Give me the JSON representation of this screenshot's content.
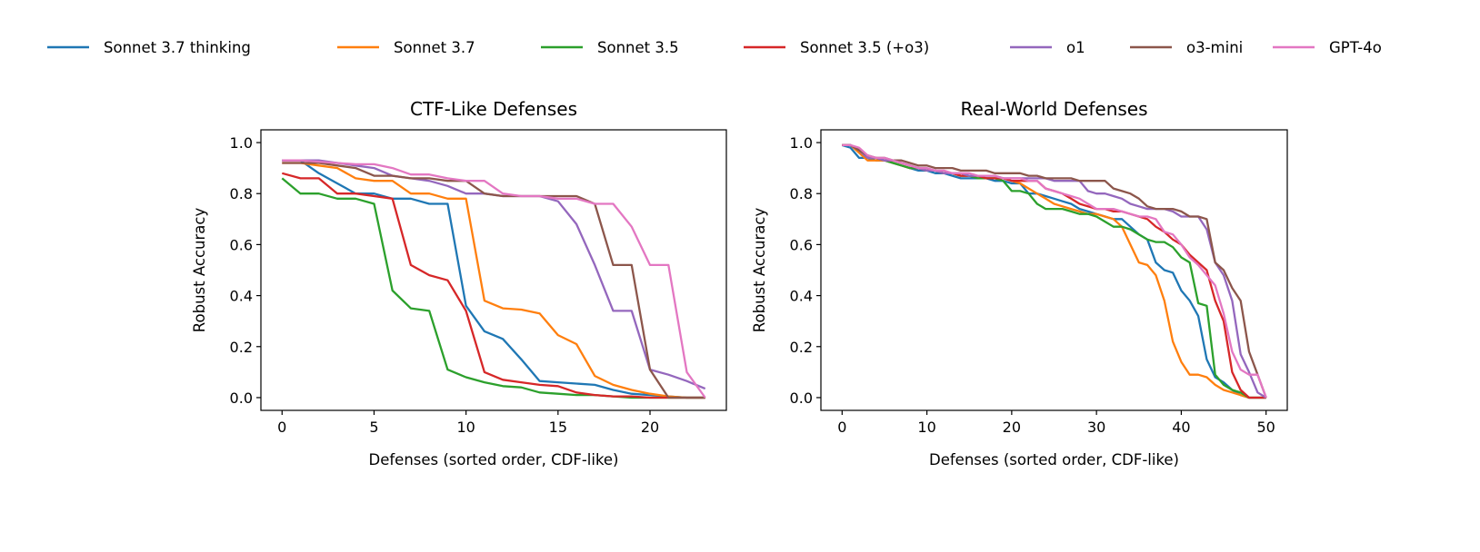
{
  "legend": [
    {
      "name": "Sonnet 3.7 thinking",
      "color": "#1f77b4"
    },
    {
      "name": "Sonnet 3.7",
      "color": "#ff7f0e"
    },
    {
      "name": "Sonnet 3.5",
      "color": "#2ca02c"
    },
    {
      "name": "Sonnet 3.5 (+o3)",
      "color": "#d62728"
    },
    {
      "name": "o1",
      "color": "#9467bd"
    },
    {
      "name": "o3-mini",
      "color": "#8c564b"
    },
    {
      "name": "GPT-4o",
      "color": "#e377c2"
    }
  ],
  "chart_data": [
    {
      "type": "line",
      "title": "CTF-Like Defenses",
      "xlabel": "Defenses (sorted order, CDF-like)",
      "ylabel": "Robust Accuracy",
      "xlim": [
        -1.15,
        24.15
      ],
      "ylim": [
        1.05,
        -0.05
      ],
      "xticks": [
        0,
        5,
        10,
        15,
        20
      ],
      "xtick_labels": [
        "0",
        "5",
        "10",
        "15",
        "20"
      ],
      "yticks": [
        0.0,
        0.2,
        0.4,
        0.6,
        0.8,
        1.0
      ],
      "ytick_labels": [
        "0.0",
        "0.2",
        "0.4",
        "0.6",
        "0.8",
        "1.0"
      ],
      "grid": false,
      "series": [
        {
          "name": "Sonnet 3.7 thinking",
          "values": [
            0.93,
            0.93,
            0.88,
            0.84,
            0.8,
            0.8,
            0.78,
            0.78,
            0.76,
            0.76,
            0.36,
            0.26,
            0.23,
            0.15,
            0.065,
            0.06,
            0.055,
            0.05,
            0.03,
            0.015,
            0.01,
            0.005,
            0,
            0
          ]
        },
        {
          "name": "Sonnet 3.7",
          "values": [
            0.92,
            0.92,
            0.91,
            0.9,
            0.86,
            0.85,
            0.85,
            0.8,
            0.8,
            0.78,
            0.78,
            0.38,
            0.35,
            0.345,
            0.33,
            0.245,
            0.21,
            0.085,
            0.05,
            0.03,
            0.015,
            0.005,
            0,
            0
          ]
        },
        {
          "name": "Sonnet 3.5",
          "values": [
            0.86,
            0.8,
            0.8,
            0.78,
            0.78,
            0.76,
            0.42,
            0.35,
            0.34,
            0.11,
            0.08,
            0.06,
            0.045,
            0.04,
            0.02,
            0.015,
            0.01,
            0.01,
            0.005,
            0,
            0,
            0,
            0,
            0
          ]
        },
        {
          "name": "Sonnet 3.5 (+o3)",
          "values": [
            0.88,
            0.86,
            0.86,
            0.8,
            0.8,
            0.79,
            0.78,
            0.52,
            0.48,
            0.46,
            0.34,
            0.1,
            0.07,
            0.06,
            0.05,
            0.045,
            0.02,
            0.01,
            0.005,
            0.005,
            0,
            0,
            0,
            0
          ]
        },
        {
          "name": "o1",
          "values": [
            0.93,
            0.93,
            0.93,
            0.92,
            0.91,
            0.9,
            0.87,
            0.86,
            0.85,
            0.83,
            0.8,
            0.8,
            0.79,
            0.79,
            0.79,
            0.77,
            0.68,
            0.52,
            0.34,
            0.34,
            0.11,
            0.09,
            0.065,
            0.035
          ]
        },
        {
          "name": "o3-mini",
          "values": [
            0.92,
            0.92,
            0.92,
            0.91,
            0.9,
            0.87,
            0.87,
            0.86,
            0.86,
            0.85,
            0.85,
            0.8,
            0.79,
            0.79,
            0.79,
            0.79,
            0.79,
            0.76,
            0.52,
            0.52,
            0.11,
            0,
            0,
            0
          ]
        },
        {
          "name": "GPT-4o",
          "values": [
            0.93,
            0.93,
            0.925,
            0.92,
            0.915,
            0.915,
            0.9,
            0.875,
            0.875,
            0.86,
            0.85,
            0.85,
            0.8,
            0.79,
            0.79,
            0.78,
            0.78,
            0.76,
            0.76,
            0.67,
            0.52,
            0.52,
            0.1,
            0
          ]
        }
      ]
    },
    {
      "type": "line",
      "title": "Real-World Defenses",
      "xlabel": "Defenses (sorted order, CDF-like)",
      "ylabel": "Robust Accuracy",
      "xlim": [
        -2.5,
        52.5
      ],
      "ylim": [
        1.05,
        -0.05
      ],
      "xticks": [
        0,
        10,
        20,
        30,
        40,
        50
      ],
      "xtick_labels": [
        "0",
        "10",
        "20",
        "30",
        "40",
        "50"
      ],
      "yticks": [
        0.0,
        0.2,
        0.4,
        0.6,
        0.8,
        1.0
      ],
      "ytick_labels": [
        "0.0",
        "0.2",
        "0.4",
        "0.6",
        "0.8",
        "1.0"
      ],
      "grid": false,
      "series": [
        {
          "name": "Sonnet 3.7 thinking",
          "values": [
            0.99,
            0.98,
            0.94,
            0.94,
            0.93,
            0.93,
            0.92,
            0.91,
            0.9,
            0.89,
            0.89,
            0.88,
            0.88,
            0.87,
            0.86,
            0.86,
            0.86,
            0.86,
            0.85,
            0.85,
            0.84,
            0.84,
            0.8,
            0.8,
            0.79,
            0.78,
            0.77,
            0.76,
            0.74,
            0.73,
            0.72,
            0.71,
            0.7,
            0.7,
            0.67,
            0.64,
            0.62,
            0.53,
            0.5,
            0.49,
            0.42,
            0.38,
            0.32,
            0.15,
            0.08,
            0.06,
            0.03,
            0.01,
            0,
            0,
            0
          ]
        },
        {
          "name": "Sonnet 3.7",
          "values": [
            0.99,
            0.99,
            0.96,
            0.93,
            0.93,
            0.93,
            0.92,
            0.91,
            0.9,
            0.9,
            0.89,
            0.89,
            0.88,
            0.88,
            0.87,
            0.87,
            0.87,
            0.86,
            0.86,
            0.86,
            0.85,
            0.84,
            0.82,
            0.8,
            0.78,
            0.76,
            0.75,
            0.74,
            0.73,
            0.72,
            0.72,
            0.71,
            0.7,
            0.67,
            0.6,
            0.53,
            0.52,
            0.48,
            0.38,
            0.22,
            0.14,
            0.09,
            0.09,
            0.08,
            0.05,
            0.03,
            0.02,
            0.01,
            0,
            0,
            0
          ]
        },
        {
          "name": "Sonnet 3.5",
          "values": [
            0.99,
            0.99,
            0.97,
            0.94,
            0.94,
            0.93,
            0.92,
            0.91,
            0.9,
            0.9,
            0.89,
            0.89,
            0.88,
            0.88,
            0.87,
            0.87,
            0.86,
            0.86,
            0.86,
            0.85,
            0.81,
            0.81,
            0.8,
            0.76,
            0.74,
            0.74,
            0.74,
            0.73,
            0.72,
            0.72,
            0.71,
            0.69,
            0.67,
            0.67,
            0.66,
            0.64,
            0.62,
            0.61,
            0.61,
            0.59,
            0.55,
            0.53,
            0.37,
            0.36,
            0.09,
            0.05,
            0.03,
            0.02,
            0,
            0,
            0
          ]
        },
        {
          "name": "Sonnet 3.5 (+o3)",
          "values": [
            0.99,
            0.99,
            0.97,
            0.94,
            0.94,
            0.93,
            0.93,
            0.92,
            0.91,
            0.9,
            0.89,
            0.89,
            0.88,
            0.88,
            0.87,
            0.87,
            0.87,
            0.86,
            0.86,
            0.86,
            0.85,
            0.85,
            0.85,
            0.85,
            0.82,
            0.81,
            0.8,
            0.78,
            0.76,
            0.75,
            0.74,
            0.74,
            0.73,
            0.73,
            0.72,
            0.71,
            0.7,
            0.67,
            0.65,
            0.62,
            0.6,
            0.56,
            0.53,
            0.5,
            0.38,
            0.3,
            0.1,
            0.03,
            0,
            0,
            0
          ]
        },
        {
          "name": "o1",
          "values": [
            0.99,
            0.99,
            0.97,
            0.94,
            0.94,
            0.93,
            0.93,
            0.92,
            0.91,
            0.9,
            0.89,
            0.89,
            0.88,
            0.88,
            0.88,
            0.87,
            0.87,
            0.87,
            0.87,
            0.86,
            0.86,
            0.86,
            0.86,
            0.86,
            0.86,
            0.85,
            0.85,
            0.85,
            0.85,
            0.81,
            0.8,
            0.8,
            0.79,
            0.78,
            0.76,
            0.75,
            0.74,
            0.74,
            0.74,
            0.73,
            0.71,
            0.71,
            0.71,
            0.66,
            0.53,
            0.48,
            0.38,
            0.17,
            0.1,
            0.02,
            0
          ]
        },
        {
          "name": "o3-mini",
          "values": [
            0.99,
            0.99,
            0.97,
            0.95,
            0.94,
            0.94,
            0.93,
            0.93,
            0.92,
            0.91,
            0.91,
            0.9,
            0.9,
            0.9,
            0.89,
            0.89,
            0.89,
            0.89,
            0.88,
            0.88,
            0.88,
            0.88,
            0.87,
            0.87,
            0.86,
            0.86,
            0.86,
            0.86,
            0.85,
            0.85,
            0.85,
            0.85,
            0.82,
            0.81,
            0.8,
            0.78,
            0.75,
            0.74,
            0.74,
            0.74,
            0.73,
            0.71,
            0.71,
            0.7,
            0.53,
            0.5,
            0.43,
            0.38,
            0.18,
            0.09,
            0
          ]
        },
        {
          "name": "GPT-4o",
          "values": [
            0.99,
            0.99,
            0.98,
            0.95,
            0.94,
            0.94,
            0.93,
            0.92,
            0.91,
            0.9,
            0.9,
            0.89,
            0.89,
            0.88,
            0.88,
            0.88,
            0.87,
            0.87,
            0.87,
            0.86,
            0.86,
            0.86,
            0.85,
            0.85,
            0.82,
            0.81,
            0.8,
            0.79,
            0.78,
            0.76,
            0.74,
            0.74,
            0.74,
            0.73,
            0.72,
            0.71,
            0.71,
            0.7,
            0.65,
            0.64,
            0.6,
            0.55,
            0.52,
            0.48,
            0.44,
            0.33,
            0.18,
            0.11,
            0.09,
            0.09,
            0
          ]
        }
      ]
    }
  ]
}
